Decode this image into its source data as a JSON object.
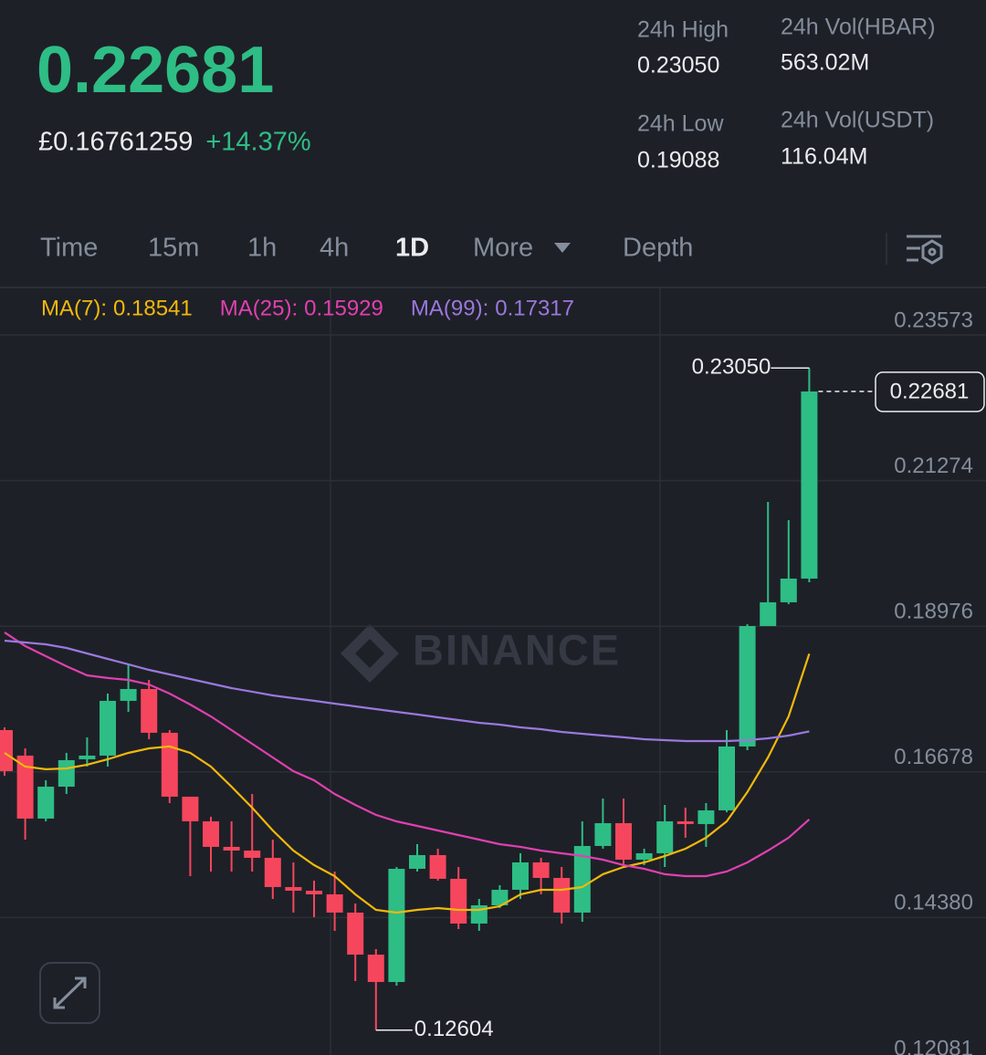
{
  "header": {
    "price": "0.22681",
    "fiat_price": "£0.16761259",
    "change": "+14.37%",
    "stats": [
      {
        "label": "24h High",
        "value": "0.23050"
      },
      {
        "label": "24h Vol(HBAR)",
        "value": "563.02M"
      },
      {
        "label": "24h Low",
        "value": "0.19088"
      },
      {
        "label": "24h Vol(USDT)",
        "value": "116.04M"
      }
    ]
  },
  "tabs": [
    "Time",
    "15m",
    "1h",
    "4h",
    "1D",
    "More",
    "Depth"
  ],
  "active_tab": 4,
  "chart_data": {
    "type": "candlestick",
    "watermark": "BINANCE",
    "up_color": "#2ebd85",
    "down_color": "#f6465d",
    "grid": true,
    "ylim": [
      0.12211,
      0.24307
    ],
    "yticks": [
      0.23573,
      0.21274,
      0.18976,
      0.16678,
      {
        "value": 0.1438,
        "label": "0.14380"
      },
      0.12081
    ],
    "open": [
      0.17338,
      0.16935,
      0.15941,
      0.16445,
      0.16877,
      0.16935,
      0.17799,
      0.17986,
      0.17295,
      0.16287,
      0.15898,
      0.15495,
      0.15437,
      0.15322,
      0.14861,
      0.14803,
      0.14746,
      0.14458,
      0.13795,
      0.13363,
      0.15149,
      0.15365,
      0.14991,
      0.14285,
      0.14573,
      0.14818,
      0.1525,
      0.15005,
      0.14458,
      0.15509,
      0.15869,
      0.15293,
      0.15394,
      0.15898,
      0.15855,
      0.16071,
      0.17079,
      0.18979,
      0.19354,
      0.19728
    ],
    "high": [
      0.17381,
      0.1705,
      0.16546,
      0.16978,
      0.17223,
      0.17914,
      0.18375,
      0.1813,
      0.17338,
      0.16287,
      0.1597,
      0.15898,
      0.1633,
      0.1561,
      0.1525,
      0.14962,
      0.15106,
      0.14602,
      0.13882,
      0.15178,
      0.15538,
      0.15466,
      0.15178,
      0.14674,
      0.1489,
      0.15394,
      0.15322,
      0.15178,
      0.15898,
      0.16258,
      0.16258,
      0.15466,
      0.16157,
      0.16114,
      0.16186,
      0.17338,
      0.19008,
      0.20938,
      0.2065,
      0.2305
    ],
    "low": [
      0.16618,
      0.1561,
      0.15898,
      0.1633,
      0.16762,
      0.16762,
      0.17626,
      0.17194,
      0.16186,
      0.15034,
      0.15106,
      0.15106,
      0.15106,
      0.14674,
      0.14458,
      0.14386,
      0.1417,
      0.13378,
      0.12604,
      0.13306,
      0.15106,
      0.14962,
      0.14199,
      0.1417,
      0.1453,
      0.14674,
      0.14746,
      0.14285,
      0.14314,
      0.15466,
      0.15207,
      0.15207,
      0.15178,
      0.15639,
      0.15495,
      0.16042,
      0.17021,
      0.18979,
      0.19325,
      0.19671
    ],
    "close": [
      0.1669,
      0.15941,
      0.16445,
      0.16863,
      0.16935,
      0.17799,
      0.17986,
      0.17295,
      0.16287,
      0.15898,
      0.15495,
      0.15437,
      0.15322,
      0.14861,
      0.14803,
      0.14746,
      0.14458,
      0.13795,
      0.13363,
      0.15149,
      0.15365,
      0.14991,
      0.14285,
      0.14573,
      0.14818,
      0.1525,
      0.15005,
      0.14458,
      0.15509,
      0.15869,
      0.15293,
      0.15394,
      0.15898,
      0.15855,
      0.16071,
      0.17079,
      0.18979,
      0.19354,
      0.19728,
      0.22681
    ],
    "series": [
      {
        "name": "MA(7):",
        "color": "#f0b90b",
        "values": [
          0.16978,
          0.16762,
          0.16719,
          0.16733,
          0.16791,
          0.16877,
          0.16978,
          0.1705,
          0.17079,
          0.16978,
          0.16762,
          0.16445,
          0.16114,
          0.15754,
          0.15437,
          0.15207,
          0.15034,
          0.14746,
          0.14501,
          0.14458,
          0.14501,
          0.1453,
          0.14501,
          0.14501,
          0.14559,
          0.14746,
          0.14818,
          0.14818,
          0.14861,
          0.15063,
          0.15178,
          0.1525,
          0.15351,
          0.15466,
          0.15639,
          0.15898,
          0.16359,
          0.16906,
          0.17554,
          0.18541
        ]
      },
      {
        "name": "MA(25):",
        "color": "#e040b0",
        "values": [
          0.18879,
          0.18663,
          0.18504,
          0.18346,
          0.18202,
          0.18159,
          0.1813,
          0.18058,
          0.17914,
          0.17741,
          0.17554,
          0.17338,
          0.17122,
          0.16906,
          0.1669,
          0.16546,
          0.1633,
          0.16157,
          0.15999,
          0.15898,
          0.15826,
          0.15754,
          0.15682,
          0.1561,
          0.15538,
          0.15495,
          0.15437,
          0.15394,
          0.15351,
          0.15293,
          0.15207,
          0.15149,
          0.15063,
          0.15034,
          0.15034,
          0.15106,
          0.1525,
          0.15437,
          0.15639,
          0.15929
        ]
      },
      {
        "name": "MA(99):",
        "color": "#9a78de",
        "values": [
          0.18749,
          0.1872,
          0.18691,
          0.18634,
          0.18547,
          0.18461,
          0.18375,
          0.18288,
          0.18216,
          0.18144,
          0.18072,
          0.18,
          0.17943,
          0.17885,
          0.17842,
          0.17799,
          0.17755,
          0.17712,
          0.17669,
          0.17626,
          0.17583,
          0.17539,
          0.17496,
          0.17453,
          0.17424,
          0.17381,
          0.17352,
          0.17309,
          0.1728,
          0.17251,
          0.17223,
          0.17194,
          0.17179,
          0.17165,
          0.17165,
          0.17165,
          0.17179,
          0.17208,
          0.17251,
          0.17317
        ]
      }
    ],
    "high_label": "0.23050",
    "low_label": "0.12604",
    "last_price_label": "0.22681"
  }
}
